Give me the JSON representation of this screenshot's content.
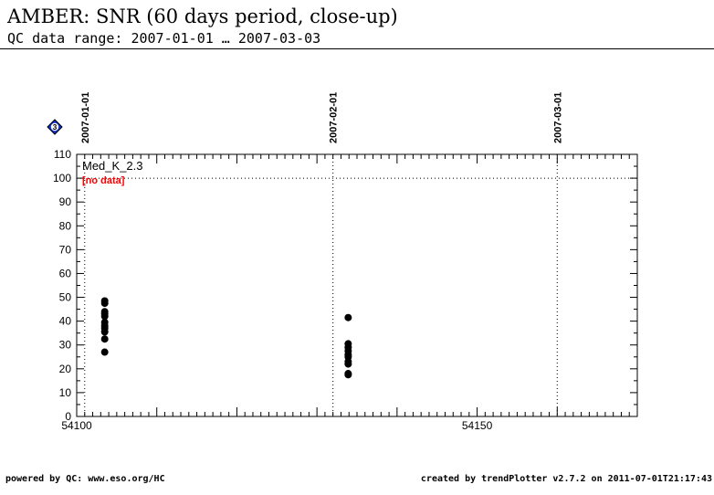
{
  "header": {
    "title": "AMBER: SNR (60 days period, close-up)",
    "subtitle": "QC data range: 2007-01-01 … 2007-03-03"
  },
  "footer": {
    "left": "powered by QC: www.eso.org/HC",
    "right": "created by trendPlotter v2.7.2 on 2011-07-01T21:17:43"
  },
  "badge": {
    "label": "3",
    "icon": "diamond-badge-icon",
    "color": "#1030d0"
  },
  "chart_data": {
    "type": "scatter",
    "xlim": [
      54100,
      54170
    ],
    "ylim": [
      0,
      110
    ],
    "x_ticks": [
      54100,
      54150
    ],
    "y_ticks": [
      0,
      10,
      20,
      30,
      40,
      50,
      60,
      70,
      80,
      90,
      100,
      110
    ],
    "reference_line": 100,
    "date_markers": [
      {
        "x": 54101,
        "label": "2007-01-01"
      },
      {
        "x": 54132,
        "label": "2007-02-01"
      },
      {
        "x": 54160,
        "label": "2007-03-01"
      }
    ],
    "series_label": "Med_K_2.3",
    "note": "[no data]",
    "note_color": "#ff0000",
    "series": [
      {
        "points": [
          [
            54103.5,
            48.5
          ],
          [
            54103.5,
            47.5
          ],
          [
            54103.5,
            44
          ],
          [
            54103.5,
            43
          ],
          [
            54103.5,
            42
          ],
          [
            54103.5,
            39.5
          ],
          [
            54103.5,
            38
          ],
          [
            54103.5,
            37
          ],
          [
            54103.5,
            35.5
          ],
          [
            54103.5,
            32.5
          ],
          [
            54103.5,
            27
          ],
          [
            54133.9,
            41.5
          ],
          [
            54133.9,
            30.5
          ],
          [
            54133.9,
            29
          ],
          [
            54133.9,
            27.5
          ],
          [
            54133.9,
            26
          ],
          [
            54133.9,
            25
          ],
          [
            54133.9,
            23
          ],
          [
            54133.9,
            22
          ],
          [
            54133.9,
            18
          ],
          [
            54133.9,
            17.5
          ]
        ]
      }
    ]
  }
}
